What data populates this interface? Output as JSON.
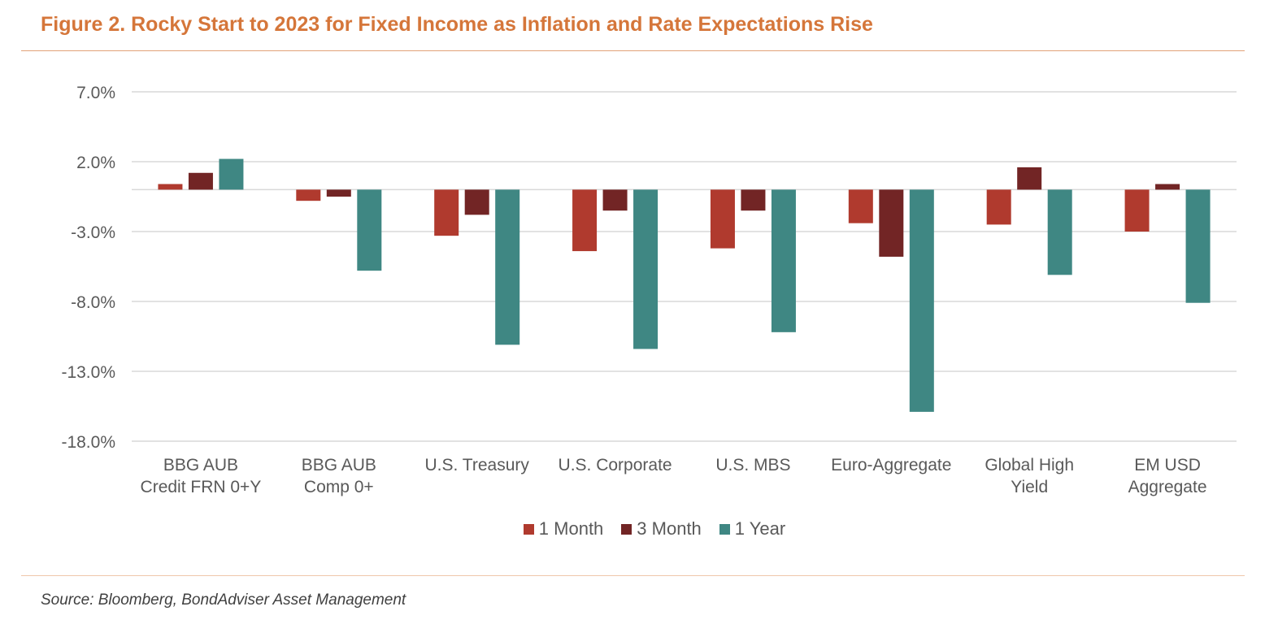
{
  "title": "Figure 2. Rocky Start to 2023 for Fixed Income as Inflation and Rate Expectations Rise",
  "source": "Source: Bloomberg, BondAdviser Asset Management",
  "chart_data": {
    "type": "bar",
    "categories": [
      [
        "BBG AUB",
        "Credit FRN 0+Y"
      ],
      [
        "BBG AUB",
        "Comp 0+"
      ],
      [
        "U.S. Treasury"
      ],
      [
        "U.S. Corporate"
      ],
      [
        "U.S. MBS"
      ],
      [
        "Euro-Aggregate"
      ],
      [
        "Global High",
        "Yield"
      ],
      [
        "EM USD",
        "Aggregate"
      ]
    ],
    "series": [
      {
        "name": "1 Month",
        "color": "#b03a2e",
        "values": [
          0.4,
          -0.8,
          -3.3,
          -4.4,
          -4.2,
          -2.4,
          -2.5,
          -3.0
        ]
      },
      {
        "name": "3 Month",
        "color": "#722525",
        "values": [
          1.2,
          -0.5,
          -1.8,
          -1.5,
          -1.5,
          -4.8,
          1.6,
          0.4
        ]
      },
      {
        "name": "1 Year",
        "color": "#3f8783",
        "values": [
          2.2,
          -5.8,
          -11.1,
          -11.4,
          -10.2,
          -15.9,
          -6.1,
          -8.1
        ]
      }
    ],
    "yticks": [
      "7.0%",
      "2.0%",
      "-3.0%",
      "-8.0%",
      "-13.0%",
      "-18.0%"
    ],
    "ytick_values": [
      7.0,
      2.0,
      -3.0,
      -8.0,
      -13.0,
      -18.0
    ],
    "ylim": [
      -18.0,
      7.0
    ],
    "grid": true,
    "legend_position": "bottom"
  }
}
